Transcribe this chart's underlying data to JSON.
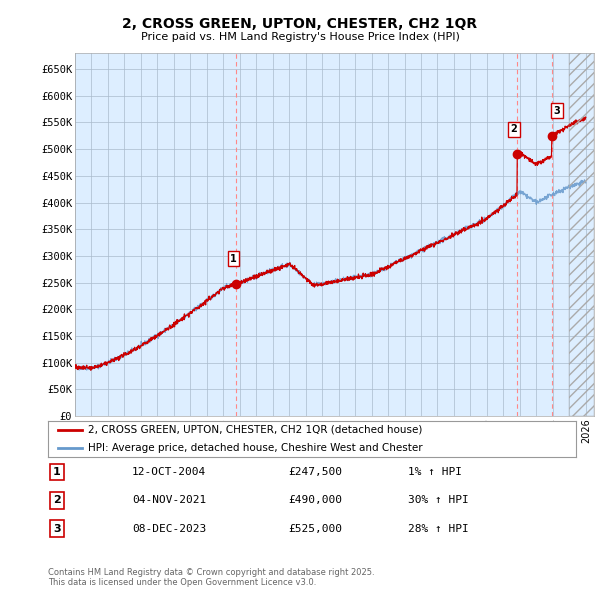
{
  "title": "2, CROSS GREEN, UPTON, CHESTER, CH2 1QR",
  "subtitle": "Price paid vs. HM Land Registry's House Price Index (HPI)",
  "ylabel_ticks": [
    "£0",
    "£50K",
    "£100K",
    "£150K",
    "£200K",
    "£250K",
    "£300K",
    "£350K",
    "£400K",
    "£450K",
    "£500K",
    "£550K",
    "£600K",
    "£650K"
  ],
  "ytick_values": [
    0,
    50000,
    100000,
    150000,
    200000,
    250000,
    300000,
    350000,
    400000,
    450000,
    500000,
    550000,
    600000,
    650000
  ],
  "legend_line1": "2, CROSS GREEN, UPTON, CHESTER, CH2 1QR (detached house)",
  "legend_line2": "HPI: Average price, detached house, Cheshire West and Chester",
  "transaction1_date": "12-OCT-2004",
  "transaction1_price": 247500,
  "transaction1_hpi": "1% ↑ HPI",
  "transaction2_date": "04-NOV-2021",
  "transaction2_price": 490000,
  "transaction2_hpi": "30% ↑ HPI",
  "transaction3_date": "08-DEC-2023",
  "transaction3_price": 525000,
  "transaction3_hpi": "28% ↑ HPI",
  "footer": "Contains HM Land Registry data © Crown copyright and database right 2025.\nThis data is licensed under the Open Government Licence v3.0.",
  "bg_color": "#ffffff",
  "chart_bg_color": "#ddeeff",
  "grid_color": "#aabbcc",
  "line_color_red": "#cc0000",
  "line_color_blue": "#6699cc",
  "vline_color": "#ff8888",
  "marker_color_red": "#cc0000",
  "x_start_year": 1995,
  "x_end_year": 2026
}
